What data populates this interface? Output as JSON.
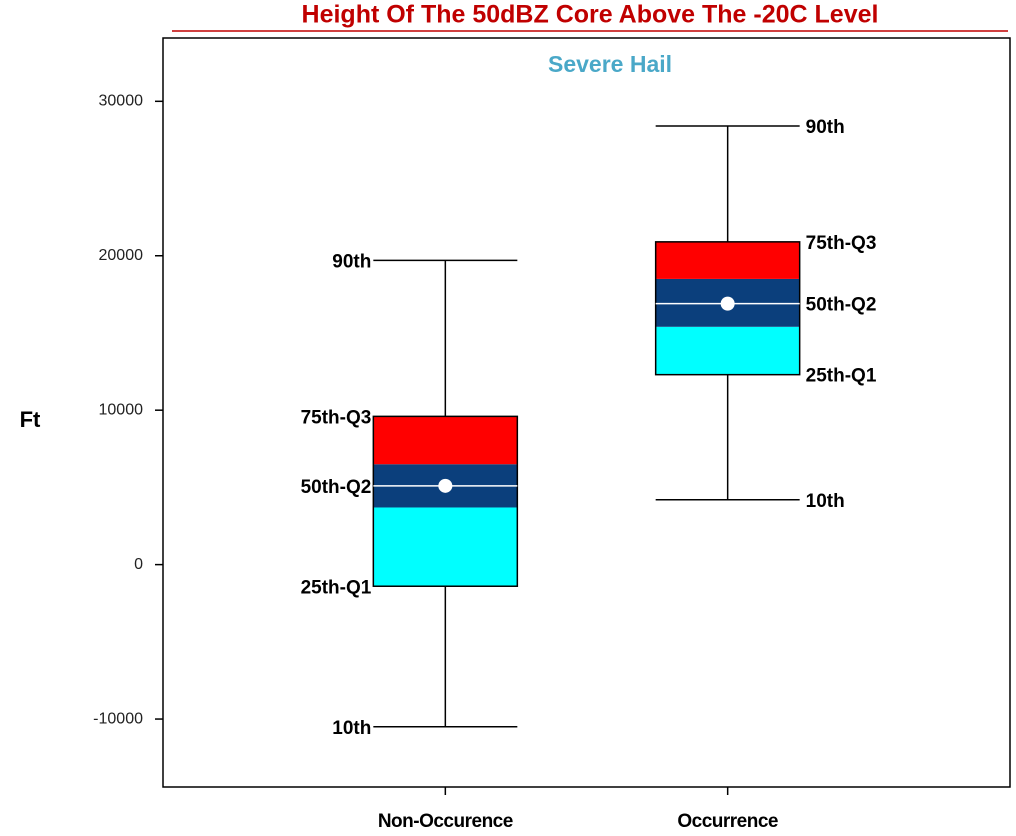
{
  "chart_data": {
    "type": "box",
    "title": "Height Of The 50dBZ Core Above The -20C Level",
    "subtitle": "Severe Hail",
    "y_label": "Ft",
    "categories": [
      "Non-Occurence",
      "Occurrence"
    ],
    "stat_labels": [
      "90th",
      "75th-Q3",
      "50th-Q2",
      "25th-Q1",
      "10th"
    ],
    "boxes": [
      {
        "p10": -10500,
        "q1": -1400,
        "median": 5100,
        "q3": 9600,
        "p90": 19700,
        "band": [
          3700,
          6500
        ]
      },
      {
        "p10": 4200,
        "q1": 12300,
        "median": 16900,
        "q3": 20900,
        "p90": 28400,
        "band": [
          15400,
          18500
        ]
      }
    ],
    "colors": {
      "upper": "#ff0000",
      "band": "#0b3f7c",
      "lower": "#00ffff",
      "median": "#ffffff"
    },
    "ylim": [
      -14400,
      34100
    ],
    "yticks": [
      -10000,
      0,
      10000,
      20000,
      30000
    ]
  }
}
